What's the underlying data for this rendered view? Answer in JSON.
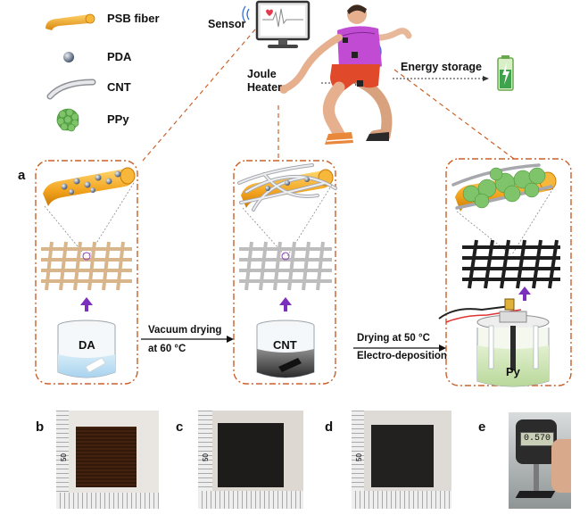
{
  "legend": [
    {
      "label": "PSB fiber",
      "icon": "psb-fiber-icon"
    },
    {
      "label": "PDA",
      "icon": "pda-particle-icon"
    },
    {
      "label": "CNT",
      "icon": "cnt-tube-icon"
    },
    {
      "label": "PPy",
      "icon": "ppy-cluster-icon"
    }
  ],
  "applications": {
    "sensor": "Sensor",
    "joule_heater": "Joule\nHeater",
    "energy_storage": "Energy storage"
  },
  "panel_labels": {
    "a": "a",
    "b": "b",
    "c": "c",
    "d": "d",
    "e": "e"
  },
  "beakers": {
    "da": "DA",
    "cnt": "CNT",
    "py": "Py"
  },
  "steps": {
    "step1_line1": "Vacuum drying",
    "step1_line2": "at 60 °C",
    "step2_line1": "Drying at 50 °C",
    "step2_line2": "Electro-deposition"
  },
  "photos": {
    "ruler_mark": "50",
    "gauge_reading": "0.570"
  },
  "colors": {
    "fiber_orange": "#f2a21c",
    "dashed_frame": "#c8612a",
    "arrow_purple": "#7b2fbf",
    "fabric_tan": "#d9b58c",
    "fabric_gray": "#b9b9b9",
    "fabric_black": "#1e1e1e",
    "ppy_green": "#7fc46a"
  }
}
